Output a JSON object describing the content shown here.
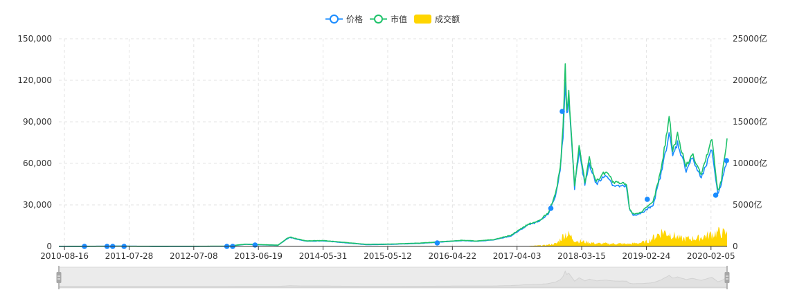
{
  "chart_data": {
    "type": "line",
    "title": "",
    "legend": {
      "position": "top-center",
      "items": [
        {
          "name": "价格",
          "color": "#1a8cff",
          "symbol": "circle-line"
        },
        {
          "name": "市值",
          "color": "#1ec26a",
          "symbol": "circle-line"
        },
        {
          "name": "成交额",
          "color": "#ffd500",
          "symbol": "rect"
        }
      ]
    },
    "x_axis": {
      "labels": [
        "2010-08-16",
        "2011-07-28",
        "2012-07-08",
        "2013-06-19",
        "2014-05-31",
        "2015-05-12",
        "2016-04-22",
        "2017-04-03",
        "2018-03-15",
        "2019-02-24",
        "2020-02-05"
      ],
      "range": [
        "2010-07-17",
        "2020-05-01"
      ]
    },
    "y_axis_left": {
      "ticks": [
        "0",
        "30,000",
        "60,000",
        "90,000",
        "120,000",
        "150,000"
      ],
      "min": 0,
      "max": 150000,
      "grid": true
    },
    "y_axis_right": {
      "ticks": [
        "0",
        "5000亿",
        "10000亿",
        "15000亿",
        "20000亿",
        "25000亿"
      ],
      "min": 0,
      "max": 25000,
      "unit": "亿"
    },
    "series": [
      {
        "name": "价格",
        "axis": "left",
        "color": "#1a8cff",
        "points": [
          [
            "2010-07-17",
            0
          ],
          [
            "2011-06-01",
            200
          ],
          [
            "2012-01-01",
            40
          ],
          [
            "2013-01-01",
            100
          ],
          [
            "2013-04-10",
            1500
          ],
          [
            "2013-10-01",
            800
          ],
          [
            "2013-11-20",
            5500
          ],
          [
            "2013-12-05",
            6500
          ],
          [
            "2014-01-10",
            5200
          ],
          [
            "2014-03-01",
            3800
          ],
          [
            "2014-06-01",
            4000
          ],
          [
            "2014-10-01",
            2600
          ],
          [
            "2015-01-15",
            1300
          ],
          [
            "2015-06-01",
            1500
          ],
          [
            "2015-11-01",
            2200
          ],
          [
            "2016-06-15",
            4200
          ],
          [
            "2016-09-01",
            3700
          ],
          [
            "2016-12-01",
            4700
          ],
          [
            "2017-03-01",
            7500
          ],
          [
            "2017-06-01",
            15500
          ],
          [
            "2017-08-01",
            18000
          ],
          [
            "2017-09-15",
            23000
          ],
          [
            "2017-10-25",
            36000
          ],
          [
            "2017-11-20",
            55000
          ],
          [
            "2017-12-05",
            80000
          ],
          [
            "2017-12-17",
            122000
          ],
          [
            "2017-12-25",
            95000
          ],
          [
            "2018-01-05",
            105000
          ],
          [
            "2018-01-20",
            75000
          ],
          [
            "2018-02-05",
            42000
          ],
          [
            "2018-03-01",
            68000
          ],
          [
            "2018-04-01",
            45000
          ],
          [
            "2018-04-25",
            60000
          ],
          [
            "2018-06-01",
            45000
          ],
          [
            "2018-07-25",
            52000
          ],
          [
            "2018-09-01",
            44000
          ],
          [
            "2018-11-10",
            43000
          ],
          [
            "2018-11-25",
            27000
          ],
          [
            "2018-12-15",
            22500
          ],
          [
            "2019-02-01",
            24000
          ],
          [
            "2019-04-01",
            30000
          ],
          [
            "2019-05-15",
            53000
          ],
          [
            "2019-06-26",
            82000
          ],
          [
            "2019-07-15",
            65000
          ],
          [
            "2019-08-10",
            75000
          ],
          [
            "2019-09-25",
            55000
          ],
          [
            "2019-10-26",
            64000
          ],
          [
            "2019-12-15",
            49000
          ],
          [
            "2020-02-10",
            70000
          ],
          [
            "2020-03-12",
            38000
          ],
          [
            "2020-04-01",
            46000
          ],
          [
            "2020-05-01",
            62000
          ]
        ],
        "markers": [
          [
            "2010-12-01",
            0
          ],
          [
            "2011-04-01",
            0
          ],
          [
            "2011-05-01",
            0
          ],
          [
            "2011-07-01",
            0
          ],
          [
            "2013-01-01",
            0
          ],
          [
            "2013-02-01",
            0
          ],
          [
            "2013-06-01",
            1000
          ],
          [
            "2016-02-01",
            2500
          ],
          [
            "2017-10-01",
            27500
          ],
          [
            "2017-12-01",
            97500
          ],
          [
            "2019-03-01",
            34000
          ],
          [
            "2020-03-01",
            37000
          ],
          [
            "2020-04-28",
            62000
          ]
        ]
      },
      {
        "name": "市值",
        "axis": "left",
        "color": "#1ec26a",
        "points": [
          [
            "2010-07-17",
            0
          ],
          [
            "2011-06-01",
            150
          ],
          [
            "2012-01-01",
            60
          ],
          [
            "2013-01-01",
            150
          ],
          [
            "2013-04-10",
            1600
          ],
          [
            "2013-10-01",
            900
          ],
          [
            "2013-11-20",
            5800
          ],
          [
            "2013-12-05",
            6800
          ],
          [
            "2014-01-10",
            5500
          ],
          [
            "2014-03-01",
            4000
          ],
          [
            "2014-06-01",
            4200
          ],
          [
            "2014-10-01",
            2800
          ],
          [
            "2015-01-15",
            1500
          ],
          [
            "2015-06-01",
            1700
          ],
          [
            "2015-11-01",
            2400
          ],
          [
            "2016-06-15",
            4400
          ],
          [
            "2016-09-01",
            3900
          ],
          [
            "2016-12-01",
            4900
          ],
          [
            "2017-03-01",
            8000
          ],
          [
            "2017-06-01",
            16000
          ],
          [
            "2017-08-01",
            18500
          ],
          [
            "2017-09-15",
            24000
          ],
          [
            "2017-10-25",
            37000
          ],
          [
            "2017-11-20",
            57000
          ],
          [
            "2017-12-05",
            85000
          ],
          [
            "2017-12-17",
            130000
          ],
          [
            "2017-12-25",
            100000
          ],
          [
            "2018-01-05",
            110000
          ],
          [
            "2018-01-20",
            78000
          ],
          [
            "2018-02-05",
            44000
          ],
          [
            "2018-03-01",
            72000
          ],
          [
            "2018-04-01",
            47000
          ],
          [
            "2018-04-25",
            63000
          ],
          [
            "2018-06-01",
            47000
          ],
          [
            "2018-07-25",
            55000
          ],
          [
            "2018-09-01",
            46000
          ],
          [
            "2018-11-10",
            45000
          ],
          [
            "2018-11-25",
            28000
          ],
          [
            "2018-12-15",
            23500
          ],
          [
            "2019-02-01",
            25000
          ],
          [
            "2019-04-01",
            32000
          ],
          [
            "2019-05-15",
            56000
          ],
          [
            "2019-06-26",
            94000
          ],
          [
            "2019-07-15",
            70000
          ],
          [
            "2019-08-10",
            80000
          ],
          [
            "2019-09-25",
            58000
          ],
          [
            "2019-10-26",
            67000
          ],
          [
            "2019-12-15",
            52000
          ],
          [
            "2020-02-10",
            78000
          ],
          [
            "2020-03-12",
            40000
          ],
          [
            "2020-04-01",
            48000
          ],
          [
            "2020-05-01",
            78000
          ]
        ]
      },
      {
        "name": "成交额",
        "axis": "right",
        "color": "#ffd500",
        "type": "area",
        "points": [
          [
            "2010-07-17",
            0
          ],
          [
            "2017-01-01",
            0
          ],
          [
            "2017-06-01",
            40
          ],
          [
            "2017-09-01",
            150
          ],
          [
            "2017-11-01",
            350
          ],
          [
            "2017-12-15",
            1500
          ],
          [
            "2018-01-05",
            1400
          ],
          [
            "2018-02-10",
            700
          ],
          [
            "2018-06-01",
            350
          ],
          [
            "2018-12-01",
            300
          ],
          [
            "2019-03-01",
            550
          ],
          [
            "2019-05-20",
            1800
          ],
          [
            "2019-07-01",
            1500
          ],
          [
            "2019-09-01",
            900
          ],
          [
            "2019-12-01",
            1000
          ],
          [
            "2020-03-12",
            1700
          ],
          [
            "2020-05-01",
            1500
          ]
        ]
      }
    ]
  }
}
